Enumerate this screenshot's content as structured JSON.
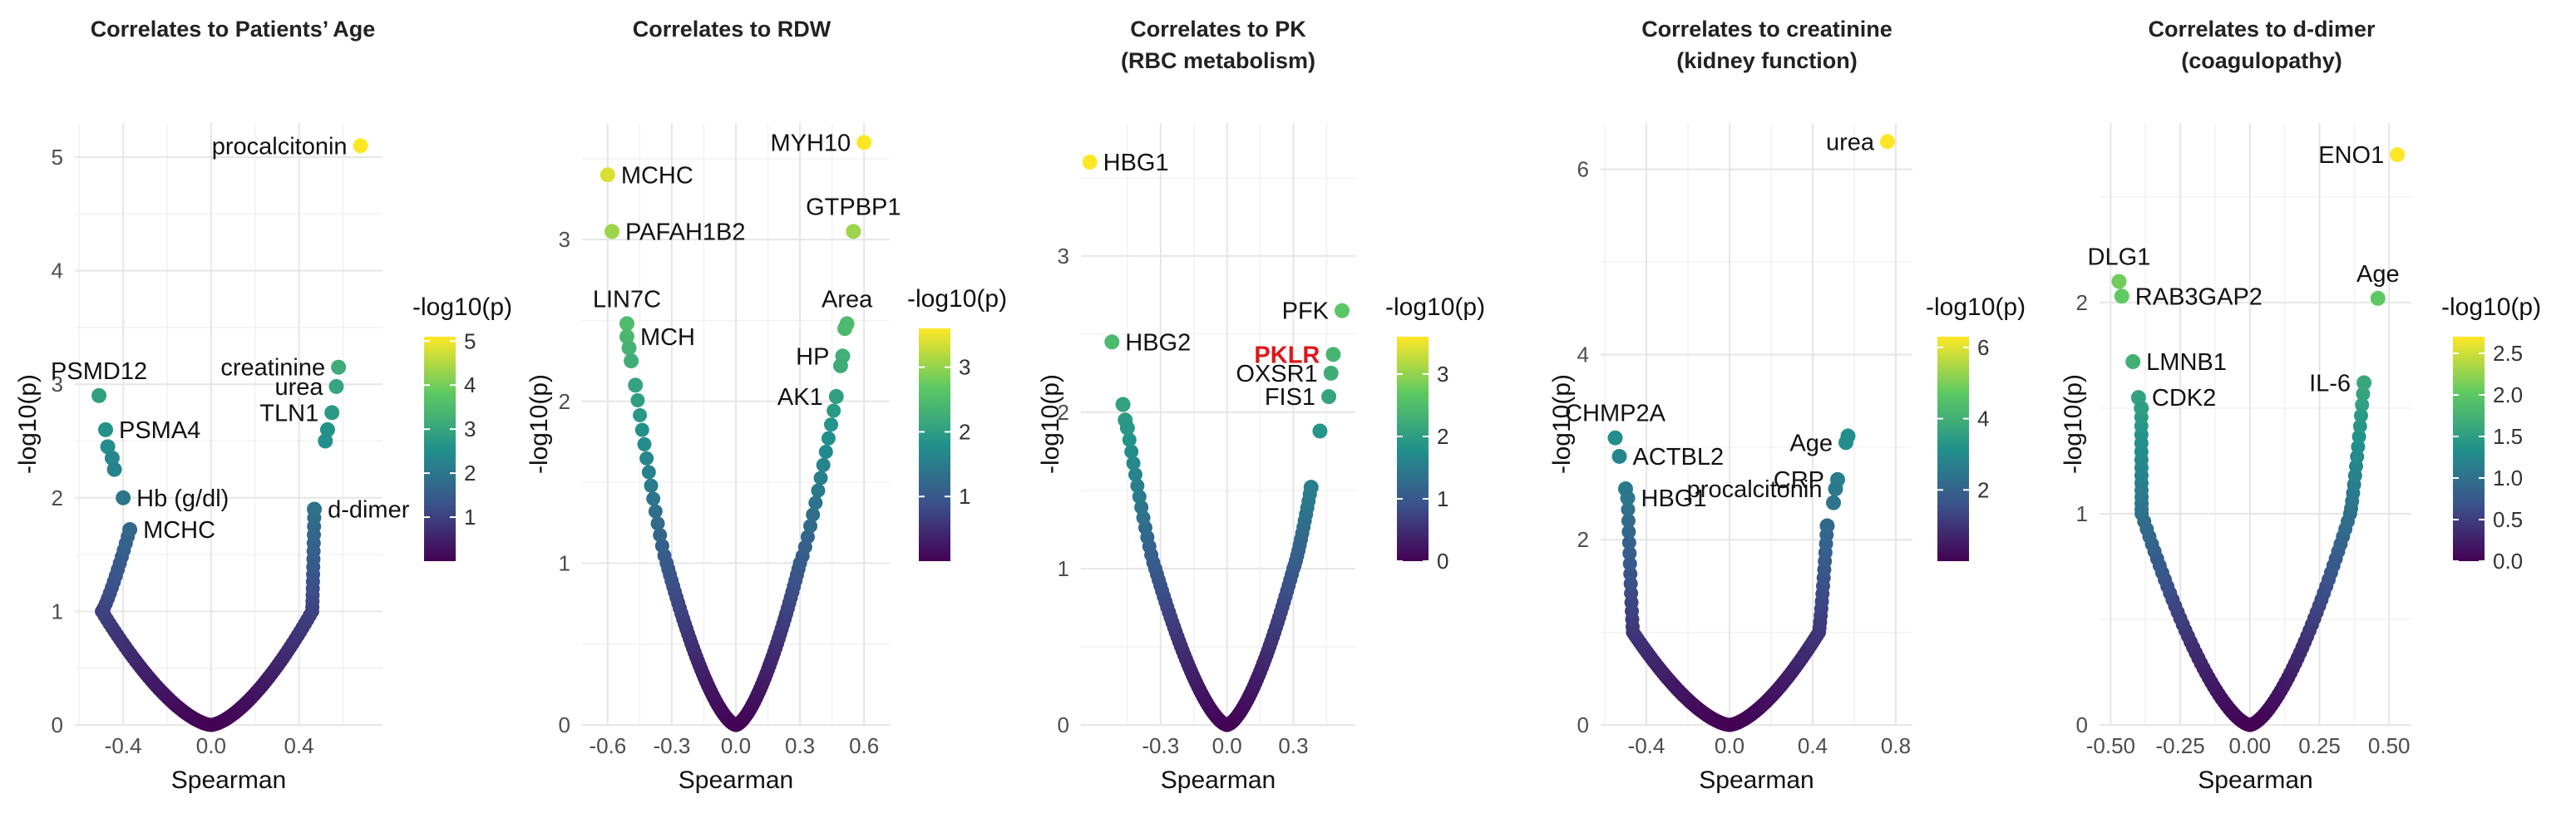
{
  "chart_data": [
    {
      "type": "scatter",
      "title": "Correlates to Patients’ Age",
      "subtitle": "",
      "xlabel": "Spearman",
      "ylabel": "-log10(p)",
      "xlim": [
        -0.62,
        0.78
      ],
      "ylim": [
        0,
        5.3
      ],
      "x_ticks": [
        -0.4,
        0.0,
        0.4
      ],
      "x_tick_labels": [
        "-0.4",
        "0.0",
        "0.4"
      ],
      "y_ticks": [
        0,
        1,
        2,
        3,
        4,
        5
      ],
      "y_tick_labels": [
        "0",
        "1",
        "2",
        "3",
        "4",
        "5"
      ],
      "legend": {
        "title": "-log10(p)",
        "max": 5.1,
        "ticks": [
          1,
          2,
          3,
          4,
          5
        ],
        "tick_labels": [
          "1",
          "2",
          "3",
          "4",
          "5"
        ],
        "position": "right"
      },
      "curve_max": 0.46,
      "points": [
        {
          "x": 0.68,
          "y": 5.1,
          "label": "procalcitonin",
          "anchor": "end"
        },
        {
          "x": 0.58,
          "y": 3.15,
          "label": "creatinine",
          "anchor": "end"
        },
        {
          "x": 0.57,
          "y": 2.98,
          "label": "urea",
          "anchor": "end"
        },
        {
          "x": 0.55,
          "y": 2.75,
          "label": "TLN1",
          "anchor": "end"
        },
        {
          "x": 0.53,
          "y": 2.6,
          "label": "",
          "anchor": "end"
        },
        {
          "x": 0.52,
          "y": 2.5,
          "label": "",
          "anchor": "end"
        },
        {
          "x": 0.47,
          "y": 1.9,
          "label": "d-dimer",
          "anchor": "start"
        },
        {
          "x": -0.51,
          "y": 2.9,
          "label": "PSMD12",
          "anchor": "middle"
        },
        {
          "x": -0.48,
          "y": 2.6,
          "label": "PSMA4",
          "anchor": "start"
        },
        {
          "x": -0.47,
          "y": 2.45,
          "label": "",
          "anchor": "start"
        },
        {
          "x": -0.45,
          "y": 2.35,
          "label": "",
          "anchor": "start"
        },
        {
          "x": -0.44,
          "y": 2.25,
          "label": "",
          "anchor": "start"
        },
        {
          "x": -0.4,
          "y": 2.0,
          "label": "Hb (g/dl)",
          "anchor": "start"
        },
        {
          "x": -0.37,
          "y": 1.72,
          "label": "MCHC",
          "anchor": "start"
        }
      ]
    },
    {
      "type": "scatter",
      "title": "Correlates to RDW",
      "subtitle": "",
      "xlabel": "Spearman",
      "ylabel": "-log10(p)",
      "xlim": [
        -0.72,
        0.72
      ],
      "ylim": [
        0,
        3.72
      ],
      "x_ticks": [
        -0.6,
        -0.3,
        0.0,
        0.3,
        0.6
      ],
      "x_tick_labels": [
        "-0.6",
        "-0.3",
        "0.0",
        "0.3",
        "0.6"
      ],
      "y_ticks": [
        0,
        1,
        2,
        3
      ],
      "y_tick_labels": [
        "0",
        "1",
        "2",
        "3"
      ],
      "legend": {
        "title": "-log10(p)",
        "max": 3.6,
        "ticks": [
          1,
          2,
          3
        ],
        "tick_labels": [
          "1",
          "2",
          "3"
        ],
        "position": "right"
      },
      "curve_max": 0.3,
      "points": [
        {
          "x": 0.6,
          "y": 3.6,
          "label": "MYH10",
          "anchor": "end"
        },
        {
          "x": -0.6,
          "y": 3.4,
          "label": "MCHC",
          "anchor": "start"
        },
        {
          "x": -0.58,
          "y": 3.05,
          "label": "PAFAH1B2",
          "anchor": "start"
        },
        {
          "x": 0.55,
          "y": 3.05,
          "label": "GTPBP1",
          "anchor": "middle"
        },
        {
          "x": -0.51,
          "y": 2.48,
          "label": "LIN7C",
          "anchor": "middle"
        },
        {
          "x": -0.51,
          "y": 2.4,
          "label": "MCH",
          "anchor": "start"
        },
        {
          "x": -0.5,
          "y": 2.33,
          "label": "",
          "anchor": "start"
        },
        {
          "x": -0.49,
          "y": 2.25,
          "label": "",
          "anchor": "start"
        },
        {
          "x": -0.47,
          "y": 2.1,
          "label": "",
          "anchor": "start"
        },
        {
          "x": 0.52,
          "y": 2.48,
          "label": "Area",
          "anchor": "middle"
        },
        {
          "x": 0.51,
          "y": 2.45,
          "label": "",
          "anchor": "end"
        },
        {
          "x": 0.5,
          "y": 2.28,
          "label": "HP",
          "anchor": "end"
        },
        {
          "x": 0.49,
          "y": 2.22,
          "label": "",
          "anchor": "end"
        },
        {
          "x": 0.47,
          "y": 2.03,
          "label": "AK1",
          "anchor": "end"
        }
      ]
    },
    {
      "type": "scatter",
      "title": "Correlates to PK",
      "subtitle": "(RBC metabolism)",
      "xlabel": "Spearman",
      "ylabel": "-log10(p)",
      "xlim": [
        -0.66,
        0.58
      ],
      "ylim": [
        0,
        3.85
      ],
      "x_ticks": [
        -0.3,
        0.0,
        0.3
      ],
      "x_tick_labels": [
        "-0.3",
        "0.0",
        "0.3"
      ],
      "y_ticks": [
        0,
        1,
        2,
        3
      ],
      "y_tick_labels": [
        "0",
        "1",
        "2",
        "3"
      ],
      "legend": {
        "title": "-log10(p)",
        "max": 3.6,
        "ticks": [
          0,
          1,
          2,
          3
        ],
        "tick_labels": [
          "0",
          "1",
          "2",
          "3"
        ],
        "position": "right"
      },
      "curve_max": 0.3,
      "points": [
        {
          "x": -0.62,
          "y": 3.6,
          "label": "HBG1",
          "anchor": "start"
        },
        {
          "x": -0.52,
          "y": 2.45,
          "label": "HBG2",
          "anchor": "start"
        },
        {
          "x": -0.47,
          "y": 2.05,
          "label": "",
          "anchor": "start"
        },
        {
          "x": -0.46,
          "y": 1.95,
          "label": "",
          "anchor": "start"
        },
        {
          "x": -0.45,
          "y": 1.9,
          "label": "",
          "anchor": "start"
        },
        {
          "x": 0.52,
          "y": 2.65,
          "label": "PFK",
          "anchor": "end"
        },
        {
          "x": 0.48,
          "y": 2.37,
          "label": "PKLR",
          "anchor": "end",
          "red": true
        },
        {
          "x": 0.47,
          "y": 2.25,
          "label": "OXSR1",
          "anchor": "end"
        },
        {
          "x": 0.46,
          "y": 2.1,
          "label": "FIS1",
          "anchor": "end"
        },
        {
          "x": 0.42,
          "y": 1.88,
          "label": "",
          "anchor": "end"
        },
        {
          "x": 0.38,
          "y": 1.52,
          "label": "",
          "anchor": "end"
        }
      ]
    },
    {
      "type": "scatter",
      "title": "Correlates to creatinine",
      "subtitle": "(kidney function)",
      "xlabel": "Spearman",
      "ylabel": "-log10(p)",
      "xlim": [
        -0.62,
        0.88
      ],
      "ylim": [
        0,
        6.5
      ],
      "x_ticks": [
        -0.4,
        0.0,
        0.4,
        0.8
      ],
      "x_tick_labels": [
        "-0.4",
        "0.0",
        "0.4",
        "0.8"
      ],
      "y_ticks": [
        0,
        2,
        4,
        6
      ],
      "y_tick_labels": [
        "0",
        "2",
        "4",
        "6"
      ],
      "legend": {
        "title": "-log10(p)",
        "max": 6.3,
        "ticks": [
          2,
          4,
          6
        ],
        "tick_labels": [
          "2",
          "4",
          "6"
        ],
        "position": "right"
      },
      "curve_max": 0.43,
      "points": [
        {
          "x": 0.76,
          "y": 6.3,
          "label": "urea",
          "anchor": "end"
        },
        {
          "x": -0.55,
          "y": 3.1,
          "label": "CHMP2A",
          "anchor": "middle"
        },
        {
          "x": -0.53,
          "y": 2.9,
          "label": "ACTBL2",
          "anchor": "start"
        },
        {
          "x": -0.5,
          "y": 2.55,
          "label": "",
          "anchor": "start"
        },
        {
          "x": -0.49,
          "y": 2.45,
          "label": "HBG1",
          "anchor": "start"
        },
        {
          "x": 0.57,
          "y": 3.12,
          "label": "",
          "anchor": "end"
        },
        {
          "x": 0.56,
          "y": 3.05,
          "label": "Age",
          "anchor": "end"
        },
        {
          "x": 0.52,
          "y": 2.65,
          "label": "CRP",
          "anchor": "end"
        },
        {
          "x": 0.51,
          "y": 2.55,
          "label": "procalcitonin",
          "anchor": "end"
        },
        {
          "x": 0.5,
          "y": 2.4,
          "label": "",
          "anchor": "end"
        },
        {
          "x": 0.47,
          "y": 2.15,
          "label": "",
          "anchor": "end"
        }
      ]
    },
    {
      "type": "scatter",
      "title": "Correlates to d-dimer",
      "subtitle": "(coagulopathy)",
      "xlabel": "Spearman",
      "ylabel": "-log10(p)",
      "xlim": [
        -0.54,
        0.58
      ],
      "ylim": [
        0,
        2.85
      ],
      "x_ticks": [
        -0.5,
        -0.25,
        0.0,
        0.25,
        0.5
      ],
      "x_tick_labels": [
        "-0.50",
        "-0.25",
        "0.00",
        "0.25",
        "0.50"
      ],
      "y_ticks": [
        0,
        1,
        2
      ],
      "y_tick_labels": [
        "0",
        "1",
        "2"
      ],
      "legend": {
        "title": "-log10(p)",
        "max": 2.7,
        "ticks": [
          0,
          0.5,
          1,
          1.5,
          2,
          2.5
        ],
        "tick_labels": [
          "0.0",
          "0.5",
          "1.0",
          "1.5",
          "2.0",
          "2.5"
        ],
        "position": "right"
      },
      "curve_max": 0.36,
      "points": [
        {
          "x": 0.53,
          "y": 2.7,
          "label": "ENO1",
          "anchor": "end"
        },
        {
          "x": -0.47,
          "y": 2.1,
          "label": "DLG1",
          "anchor": "middle"
        },
        {
          "x": -0.46,
          "y": 2.03,
          "label": "RAB3GAP2",
          "anchor": "start"
        },
        {
          "x": 0.46,
          "y": 2.02,
          "label": "Age",
          "anchor": "middle"
        },
        {
          "x": -0.42,
          "y": 1.72,
          "label": "LMNB1",
          "anchor": "start"
        },
        {
          "x": -0.4,
          "y": 1.55,
          "label": "CDK2",
          "anchor": "start"
        },
        {
          "x": -0.39,
          "y": 1.5,
          "label": "",
          "anchor": "start"
        },
        {
          "x": 0.41,
          "y": 1.62,
          "label": "IL-6",
          "anchor": "end"
        }
      ]
    }
  ]
}
